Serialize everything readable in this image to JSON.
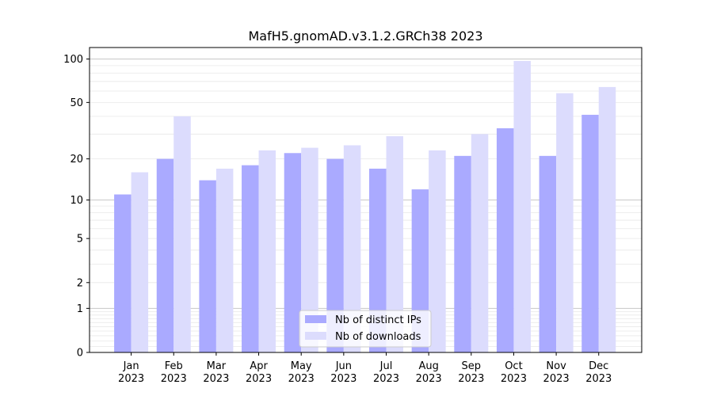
{
  "chart_data": {
    "type": "bar",
    "title": "MafH5.gnomAD.v3.1.2.GRCh38 2023",
    "xlabel": "",
    "ylabel": "",
    "yscale": "symlog",
    "categories": [
      "Jan\n2023",
      "Feb\n2023",
      "Mar\n2023",
      "Apr\n2023",
      "May\n2023",
      "Jun\n2023",
      "Jul\n2023",
      "Aug\n2023",
      "Sep\n2023",
      "Oct\n2023",
      "Nov\n2023",
      "Dec\n2023"
    ],
    "yticks": [
      0,
      1,
      2,
      5,
      10,
      20,
      50,
      100
    ],
    "ylim": [
      0,
      120
    ],
    "grid": true,
    "legend_position": "bottom-center",
    "series": [
      {
        "name": "Nb of distinct IPs",
        "color": "#aaaaff",
        "values": [
          11,
          20,
          14,
          18,
          22,
          20,
          17,
          12,
          21,
          33,
          21,
          41
        ]
      },
      {
        "name": "Nb of downloads",
        "color": "#dcdcfd",
        "values": [
          16,
          40,
          17,
          23,
          24,
          25,
          29,
          23,
          30,
          97,
          58,
          64
        ]
      }
    ]
  }
}
